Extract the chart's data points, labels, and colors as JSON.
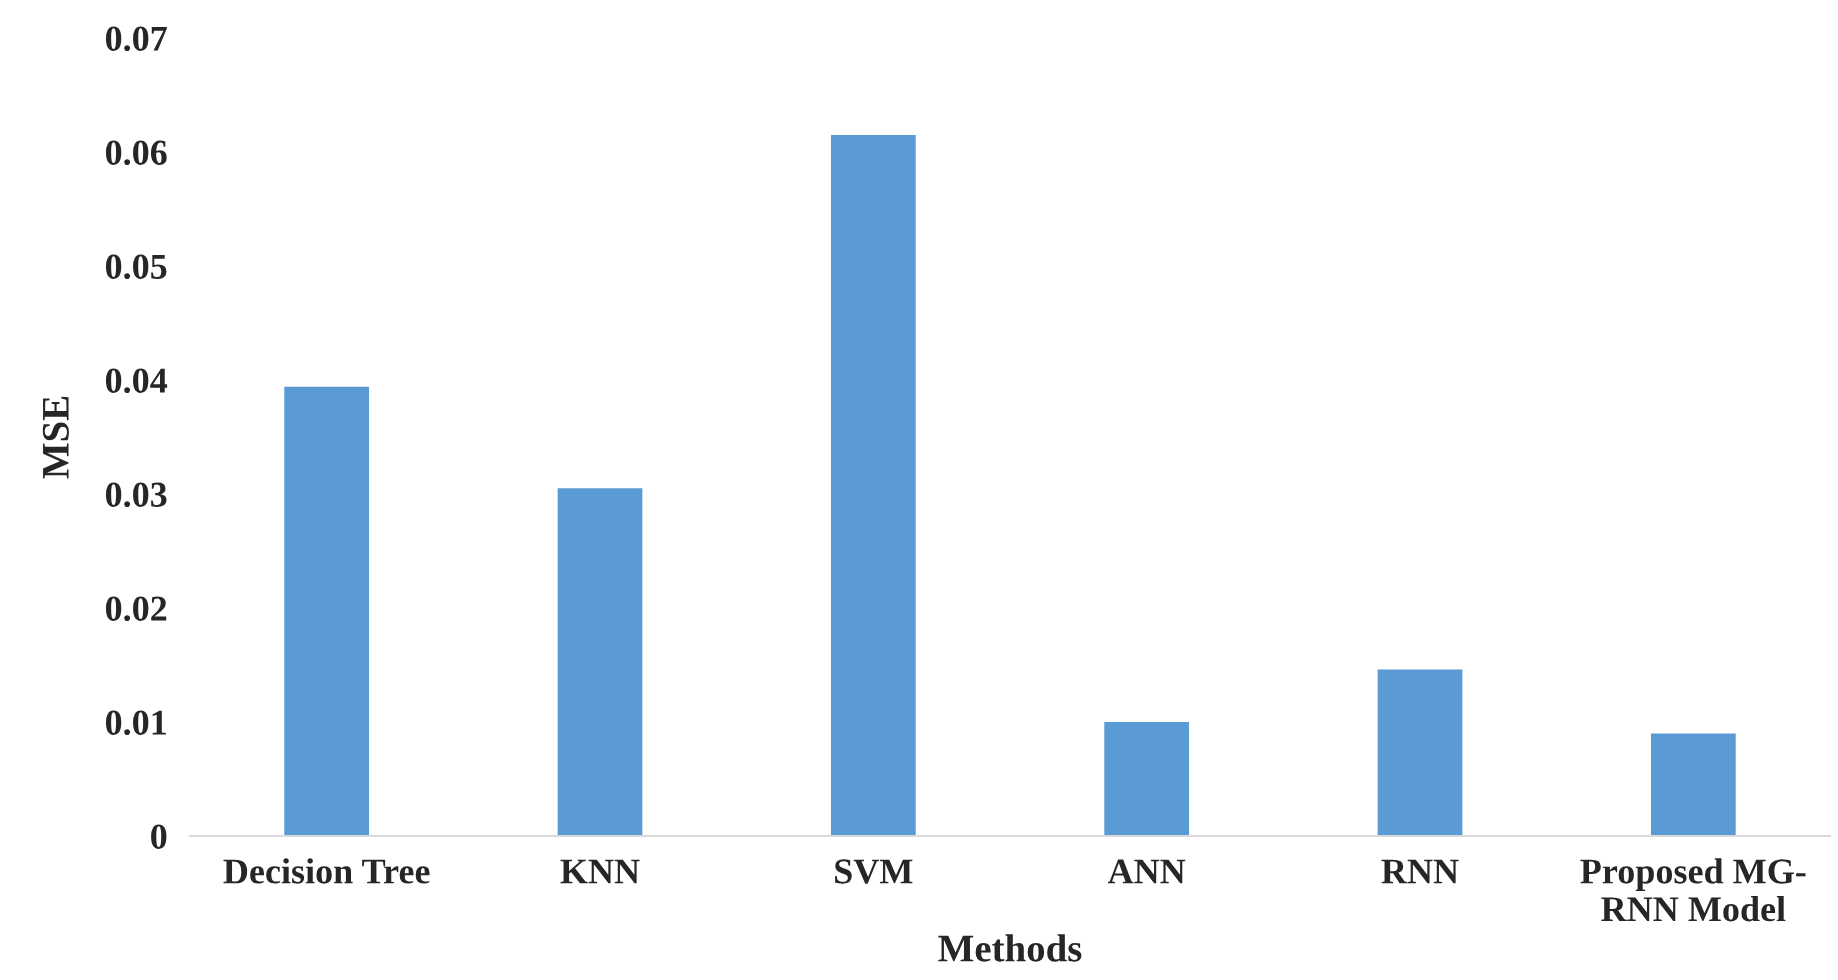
{
  "chart_data": {
    "type": "bar",
    "xlabel": "Methods",
    "ylabel": "MSE",
    "categories": [
      "Decision Tree",
      "KNN",
      "SVM",
      "ANN",
      "RNN",
      "Proposed MG-\nRNN Model"
    ],
    "values": [
      0.0394,
      0.0305,
      0.0615,
      0.01,
      0.0146,
      0.009
    ],
    "color": "#5b9bd5",
    "ylim": [
      0,
      0.07
    ],
    "yticks": [
      0,
      0.01,
      0.02,
      0.03,
      0.04,
      0.05,
      0.06,
      0.07
    ],
    "grid": false,
    "legend": false
  }
}
